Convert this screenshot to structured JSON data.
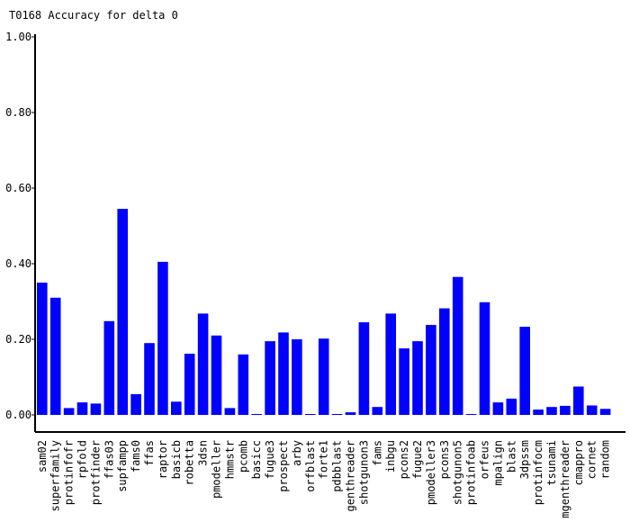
{
  "chart_data": {
    "type": "bar",
    "title": "T0168 Accuracy for delta 0",
    "xlabel": "",
    "ylabel": "",
    "ylim": [
      0,
      1.0
    ],
    "yticks": [
      "0.00",
      "0.20",
      "0.40",
      "0.60",
      "0.80",
      "1.00"
    ],
    "bar_color": "#0000ff",
    "categories": [
      "sam02",
      "superfamily",
      "protinfofr",
      "rpfold",
      "protfinder",
      "ffas03",
      "supfampp",
      "fams0",
      "ffas",
      "raptor",
      "basicb",
      "robetta",
      "3dsn",
      "pmodeller",
      "hmmstr",
      "pcomb",
      "basicc",
      "fugue3",
      "prospect",
      "arby",
      "orfblast",
      "forte1",
      "pdbblast",
      "genthreader",
      "shotgunon3",
      "fams",
      "inbgu",
      "pcons2",
      "fugue2",
      "pmodeller3",
      "pcons3",
      "shotgunon5",
      "protinfoab",
      "orfeus",
      "mpalign",
      "blast",
      "3dpssm",
      "protinfocm",
      "tsunami",
      "mgenthreader",
      "cmappro",
      "cornet",
      "random"
    ],
    "values": [
      0.35,
      0.31,
      0.018,
      0.033,
      0.03,
      0.248,
      0.545,
      0.055,
      0.19,
      0.405,
      0.035,
      0.162,
      0.268,
      0.21,
      0.018,
      0.16,
      0.002,
      0.195,
      0.218,
      0.2,
      0.002,
      0.202,
      0.002,
      0.007,
      0.245,
      0.021,
      0.268,
      0.176,
      0.195,
      0.238,
      0.282,
      0.365,
      0.002,
      0.298,
      0.033,
      0.043,
      0.233,
      0.014,
      0.021,
      0.024,
      0.075,
      0.025,
      0.016
    ]
  }
}
